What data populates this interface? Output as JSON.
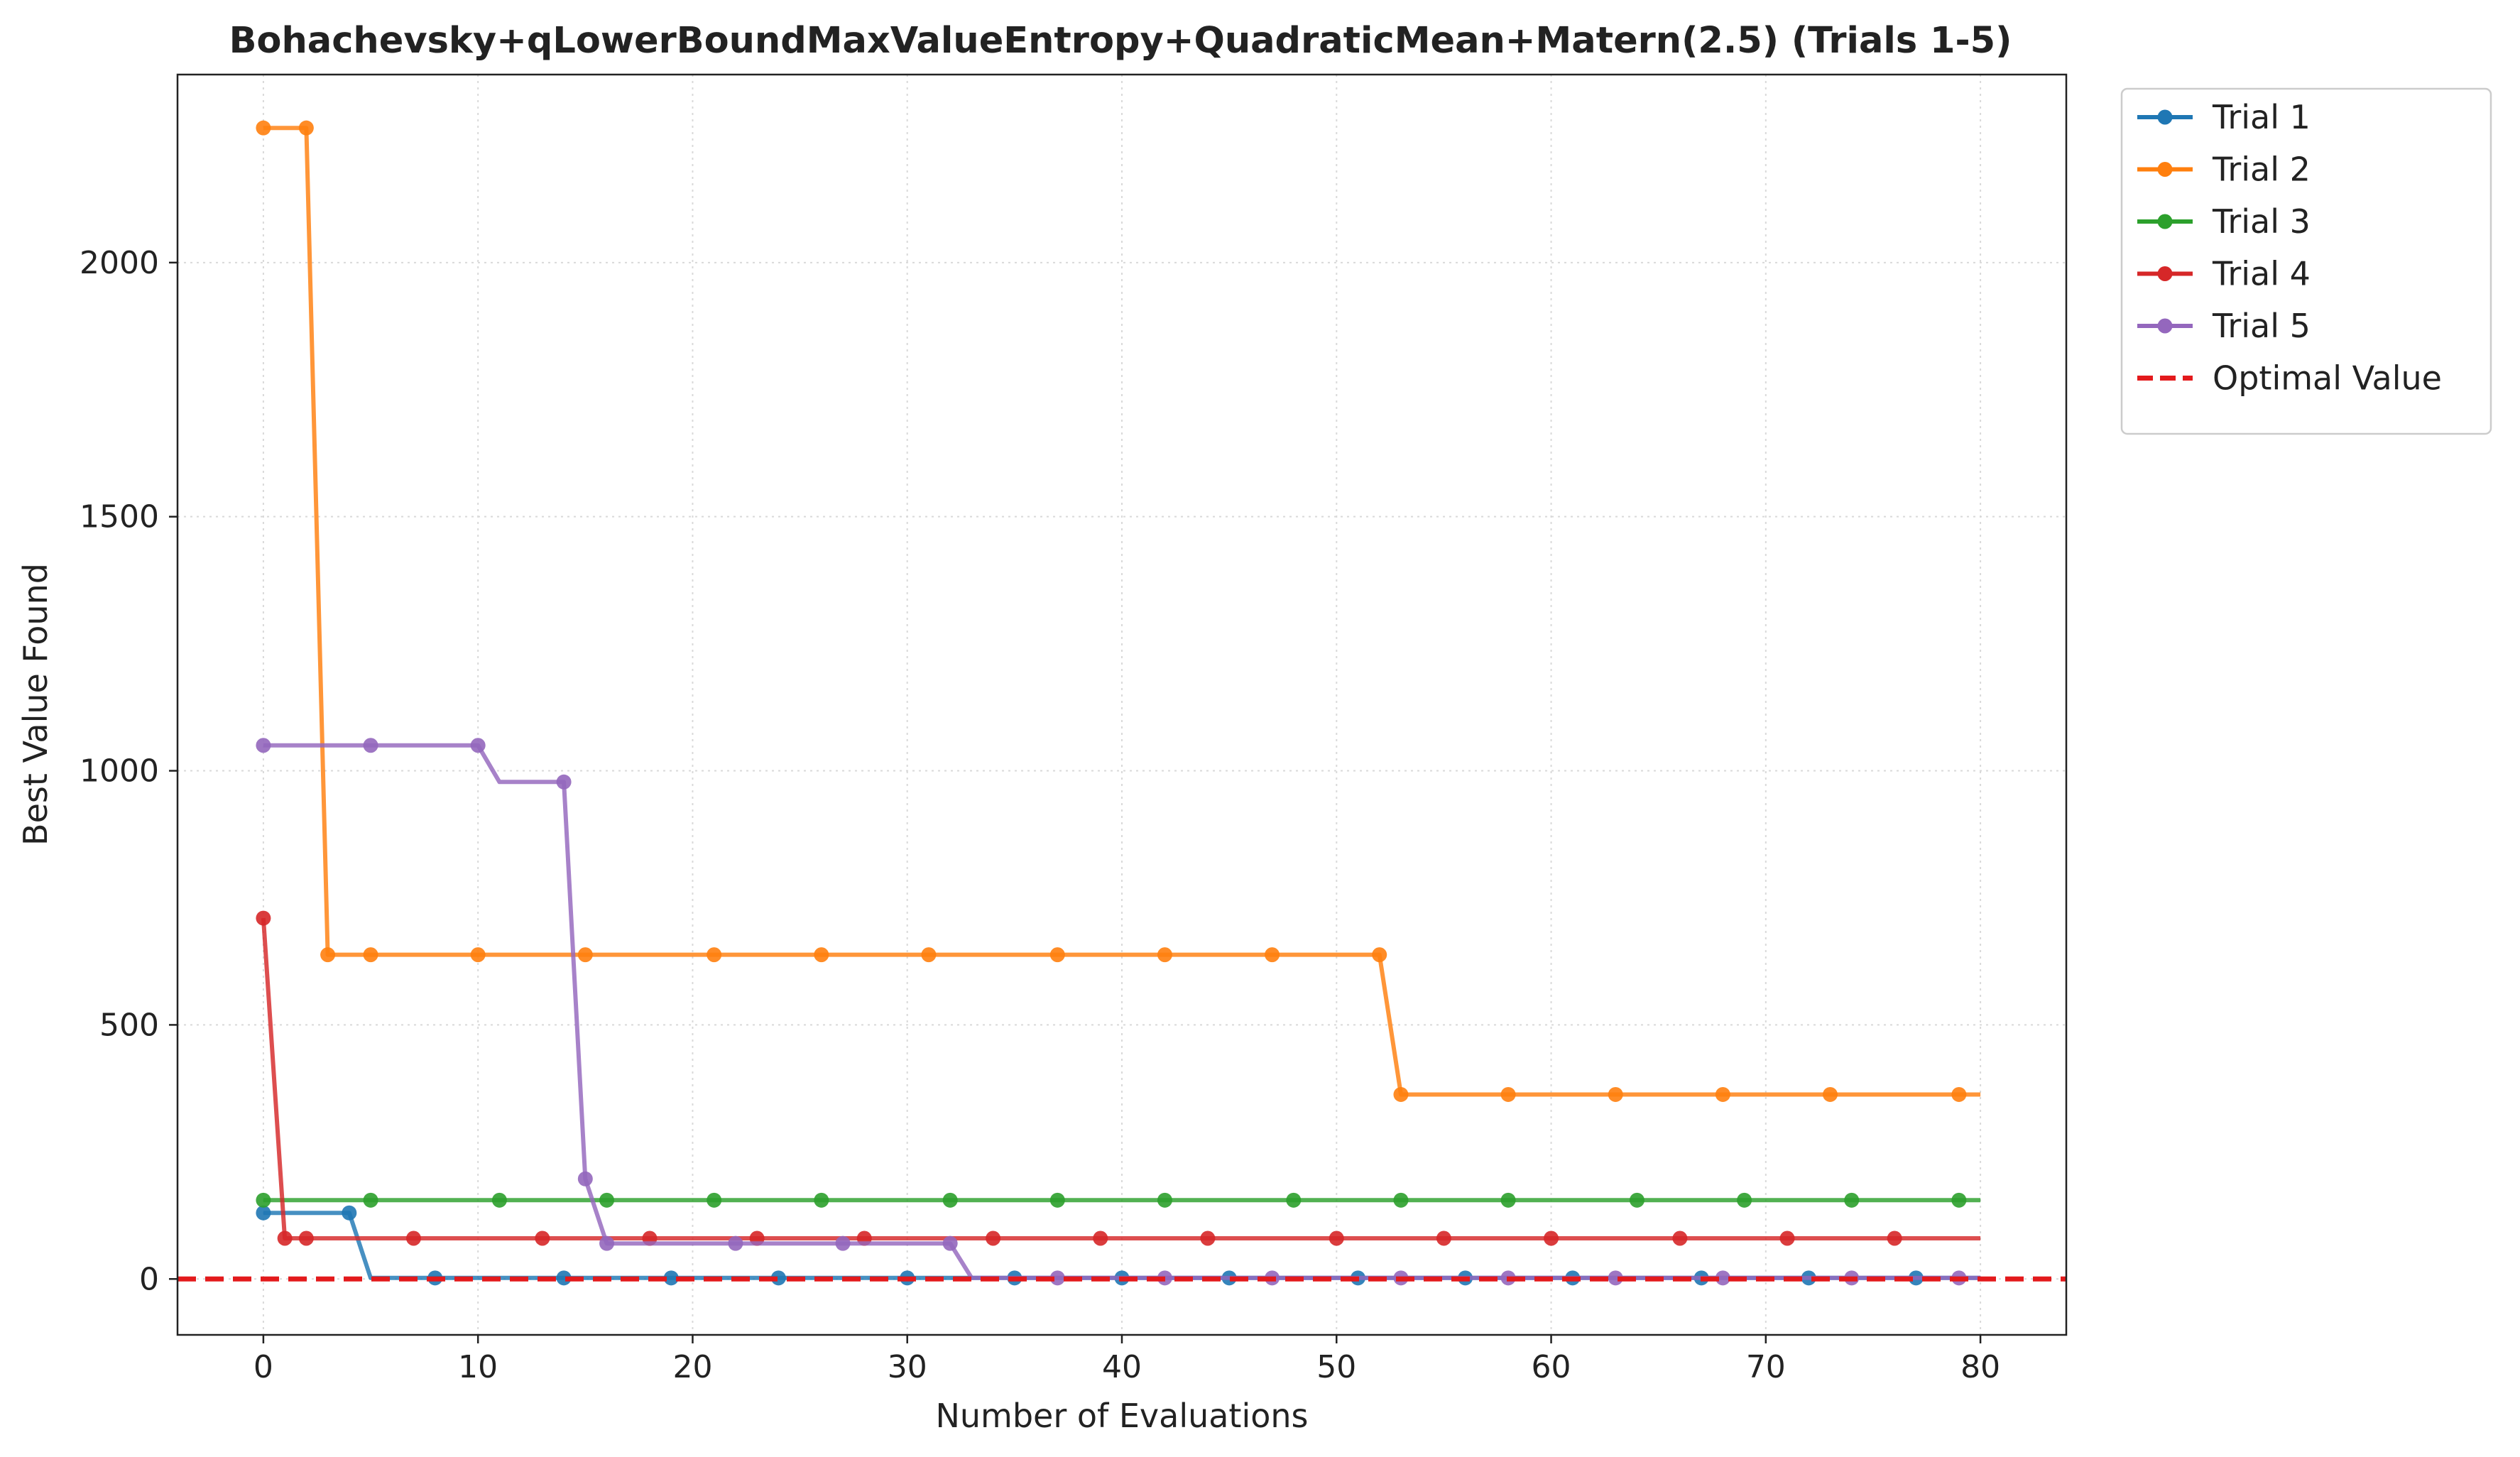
{
  "chart_data": {
    "type": "line",
    "title": "Bohachevsky+qLowerBoundMaxValueEntropy+QuadraticMean+Matern(2.5) (Trials 1-5)",
    "xlabel": "Number of Evaluations",
    "ylabel": "Best Value Found",
    "xlim": [
      -4,
      84
    ],
    "ylim": [
      -110,
      2370
    ],
    "xticks": [
      0,
      10,
      20,
      30,
      40,
      50,
      60,
      70,
      80
    ],
    "yticks": [
      0,
      500,
      1000,
      1500,
      2000
    ],
    "grid": true,
    "legend_position": "outside-top-right",
    "x_max": 80,
    "series": [
      {
        "name": "Trial 1",
        "color": "#1f77b4",
        "steps": [
          [
            0,
            130
          ],
          [
            4,
            130
          ],
          [
            5,
            2
          ],
          [
            80,
            2
          ]
        ],
        "markers": [
          0,
          4,
          8,
          14,
          19,
          24,
          30,
          35,
          40,
          45,
          51,
          56,
          61,
          67,
          72,
          77
        ]
      },
      {
        "name": "Trial 2",
        "color": "#ff7f0e",
        "steps": [
          [
            0,
            2265
          ],
          [
            2,
            2265
          ],
          [
            3,
            638
          ],
          [
            52,
            638
          ],
          [
            53,
            363
          ],
          [
            80,
            363
          ]
        ],
        "markers": [
          0,
          2,
          3,
          5,
          10,
          15,
          21,
          26,
          31,
          37,
          42,
          47,
          52,
          53,
          58,
          63,
          68,
          73,
          79
        ]
      },
      {
        "name": "Trial 3",
        "color": "#2ca02c",
        "steps": [
          [
            0,
            155
          ],
          [
            80,
            155
          ]
        ],
        "markers": [
          0,
          5,
          11,
          16,
          21,
          26,
          32,
          37,
          42,
          48,
          53,
          58,
          64,
          69,
          74,
          79
        ]
      },
      {
        "name": "Trial 4",
        "color": "#d62728",
        "steps": [
          [
            0,
            710
          ],
          [
            1,
            80
          ],
          [
            80,
            80
          ]
        ],
        "markers": [
          0,
          1,
          2,
          7,
          13,
          18,
          23,
          28,
          34,
          39,
          44,
          50,
          55,
          60,
          66,
          71,
          76
        ]
      },
      {
        "name": "Trial 5",
        "color": "#9467bd",
        "steps": [
          [
            0,
            1050
          ],
          [
            10,
            1050
          ],
          [
            11,
            978
          ],
          [
            14,
            978
          ],
          [
            15,
            197
          ],
          [
            16,
            70
          ],
          [
            32,
            70
          ],
          [
            33,
            2
          ],
          [
            80,
            2
          ]
        ],
        "markers": [
          0,
          5,
          10,
          14,
          15,
          16,
          22,
          27,
          32,
          37,
          42,
          47,
          53,
          58,
          63,
          68,
          74,
          79
        ]
      }
    ],
    "reference_line": {
      "name": "Optimal Value",
      "y": 0,
      "color": "#e31a1c",
      "style": "dashed"
    }
  }
}
